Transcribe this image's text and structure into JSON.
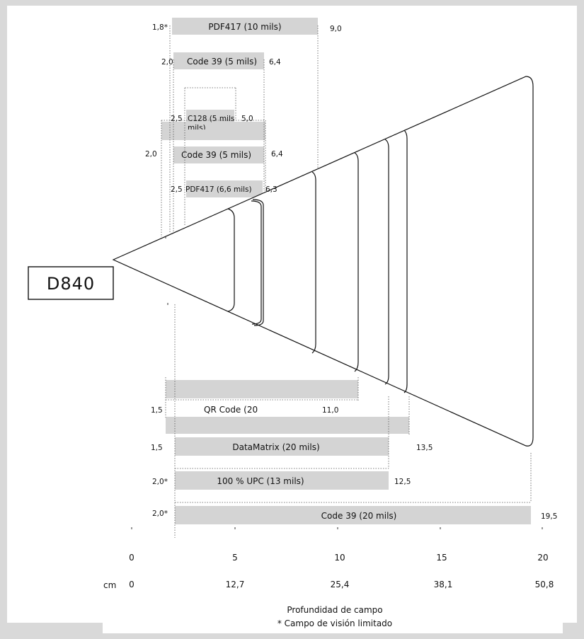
{
  "model": "D840",
  "footer": {
    "title": "Profundidad de campo",
    "note": "* Campo de visión limitado"
  },
  "axis": {
    "inch_ticks": [
      "0",
      "5",
      "10",
      "15",
      "20"
    ],
    "cm_unit": "cm",
    "cm_ticks": [
      "0",
      "12,7",
      "25,4",
      "38,1",
      "50,8"
    ]
  },
  "bars": [
    {
      "label": "PDF417 (10 mils)",
      "min": "1,8*",
      "max": "9,0"
    },
    {
      "label": "Code 39 (5 mils)",
      "min": "2,0",
      "max": "6,4"
    },
    {
      "label": "C128 (5 mils)",
      "min": "2,5",
      "max": "5,0"
    },
    {
      "label": "Code 39 (5 mils)",
      "min": "2,0",
      "max": "6,4"
    },
    {
      "label": "PDF417 (6,6 mils)",
      "min": "2,5",
      "max": "6,3"
    },
    {
      "label": "QR Code (20",
      "min": "1,5",
      "max": "11,0"
    },
    {
      "label": "DataMatrix (20 mils)",
      "min": "1,5",
      "max": "13,5"
    },
    {
      "label": "100 % UPC (13 mils)",
      "min": "2,0*",
      "max": "12,5"
    },
    {
      "label": "Code 39 (20 mils)",
      "min": "2,0*",
      "max": "19,5"
    }
  ]
}
